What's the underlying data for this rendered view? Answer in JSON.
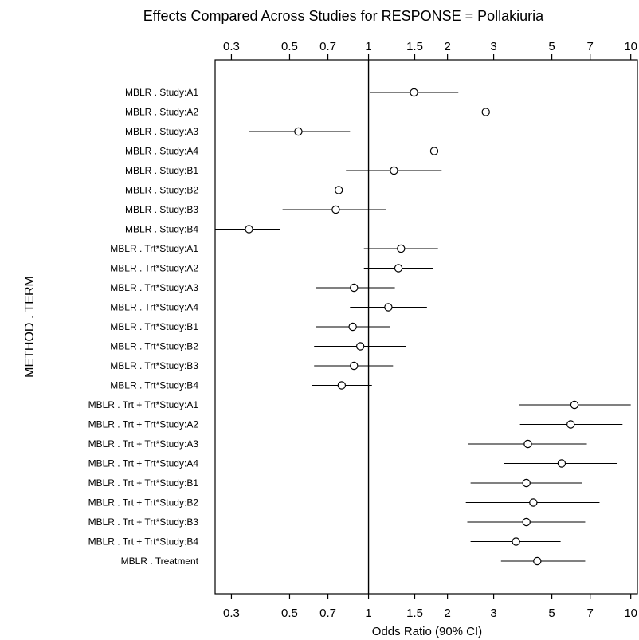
{
  "chart_data": {
    "type": "forest",
    "title": "Effects Compared Across Studies for RESPONSE = Pollakiuria",
    "xlabel": "Odds Ratio (90% CI)",
    "ylabel": "METHOD . TERM",
    "x_scale": "log",
    "xlim": [
      0.26,
      10.6
    ],
    "reference_line": 1,
    "x_ticks": [
      0.3,
      0.5,
      0.7,
      1,
      1.5,
      2,
      3,
      5,
      7,
      10
    ],
    "x_tick_labels": [
      "0.3",
      "0.5",
      "0.7",
      "1",
      "1.5",
      "2",
      "3",
      "5",
      "7",
      "10"
    ],
    "rows": [
      {
        "label": "MBLR . Study:A1",
        "estimate": 1.49,
        "lower": 1.01,
        "upper": 2.2
      },
      {
        "label": "MBLR . Study:A2",
        "estimate": 2.8,
        "lower": 1.96,
        "upper": 3.95
      },
      {
        "label": "MBLR . Study:A3",
        "estimate": 0.54,
        "lower": 0.35,
        "upper": 0.85
      },
      {
        "label": "MBLR . Study:A4",
        "estimate": 1.78,
        "lower": 1.22,
        "upper": 2.65
      },
      {
        "label": "MBLR . Study:B1",
        "estimate": 1.25,
        "lower": 0.82,
        "upper": 1.9
      },
      {
        "label": "MBLR . Study:B2",
        "estimate": 0.77,
        "lower": 0.37,
        "upper": 1.58
      },
      {
        "label": "MBLR . Study:B3",
        "estimate": 0.75,
        "lower": 0.47,
        "upper": 1.17
      },
      {
        "label": "MBLR . Study:B4",
        "estimate": 0.35,
        "lower": 0.26,
        "upper": 0.46
      },
      {
        "label": "MBLR . Trt*Study:A1",
        "estimate": 1.33,
        "lower": 0.96,
        "upper": 1.84
      },
      {
        "label": "MBLR . Trt*Study:A2",
        "estimate": 1.3,
        "lower": 0.96,
        "upper": 1.76
      },
      {
        "label": "MBLR . Trt*Study:A3",
        "estimate": 0.88,
        "lower": 0.63,
        "upper": 1.26
      },
      {
        "label": "MBLR . Trt*Study:A4",
        "estimate": 1.19,
        "lower": 0.85,
        "upper": 1.67
      },
      {
        "label": "MBLR . Trt*Study:B1",
        "estimate": 0.87,
        "lower": 0.63,
        "upper": 1.21
      },
      {
        "label": "MBLR . Trt*Study:B2",
        "estimate": 0.93,
        "lower": 0.62,
        "upper": 1.39
      },
      {
        "label": "MBLR . Trt*Study:B3",
        "estimate": 0.88,
        "lower": 0.62,
        "upper": 1.24
      },
      {
        "label": "MBLR . Trt*Study:B4",
        "estimate": 0.79,
        "lower": 0.61,
        "upper": 1.03
      },
      {
        "label": "MBLR . Trt + Trt*Study:A1",
        "estimate": 6.1,
        "lower": 3.75,
        "upper": 10.0
      },
      {
        "label": "MBLR . Trt + Trt*Study:A2",
        "estimate": 5.9,
        "lower": 3.78,
        "upper": 9.3
      },
      {
        "label": "MBLR . Trt + Trt*Study:A3",
        "estimate": 4.05,
        "lower": 2.4,
        "upper": 6.8
      },
      {
        "label": "MBLR . Trt + Trt*Study:A4",
        "estimate": 5.45,
        "lower": 3.28,
        "upper": 8.9
      },
      {
        "label": "MBLR . Trt + Trt*Study:B1",
        "estimate": 4.0,
        "lower": 2.45,
        "upper": 6.5
      },
      {
        "label": "MBLR . Trt + Trt*Study:B2",
        "estimate": 4.25,
        "lower": 2.35,
        "upper": 7.6
      },
      {
        "label": "MBLR . Trt + Trt*Study:B3",
        "estimate": 4.0,
        "lower": 2.38,
        "upper": 6.7
      },
      {
        "label": "MBLR . Trt + Trt*Study:B4",
        "estimate": 3.65,
        "lower": 2.45,
        "upper": 5.4
      },
      {
        "label": "MBLR . Treatment",
        "estimate": 4.4,
        "lower": 3.2,
        "upper": 6.7
      }
    ]
  }
}
